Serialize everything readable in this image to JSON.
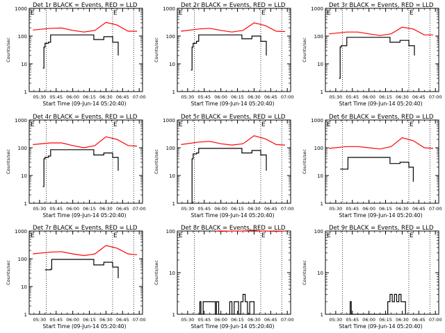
{
  "figure": {
    "ylabel": "Counts/sec",
    "xlabel_prefix": "Start Time",
    "start_time": "09-Jun-14 05:20:40",
    "event_marker": "E",
    "colors": {
      "events": "#000000",
      "lld": "#ff0000",
      "axes": "#000000"
    }
  },
  "chart_data": [
    {
      "type": "line",
      "title": "Det 1r BLACK = Events, RED = LLD",
      "x_ticks": [
        "05:30",
        "05:45",
        "06:00",
        "06:15",
        "06:30",
        "06:45",
        "07:00"
      ],
      "ylim": [
        1,
        1000
      ],
      "yscale": "log",
      "y_ticks": [
        "1",
        "10",
        "100",
        "1000"
      ],
      "event_lines": [
        "05:36",
        "06:36",
        "06:55"
      ],
      "series": [
        {
          "name": "Events",
          "color": "#000000",
          "x": [
            "05:33",
            "05:34",
            "05:35",
            "05:38",
            "05:40",
            "06:18",
            "06:19",
            "06:28",
            "06:36",
            "06:41"
          ],
          "y": [
            7,
            40,
            55,
            60,
            110,
            110,
            75,
            95,
            60,
            20
          ]
        },
        {
          "name": "LLD",
          "color": "#ff0000",
          "x": [
            "05:24",
            "05:40",
            "05:50",
            "06:00",
            "06:10",
            "06:20",
            "06:30",
            "06:40",
            "06:50",
            "06:58"
          ],
          "y": [
            165,
            190,
            195,
            160,
            140,
            160,
            310,
            250,
            150,
            150
          ]
        }
      ]
    },
    {
      "type": "line",
      "title": "Det 2r BLACK = Events, RED = LLD",
      "x_ticks": [
        "05:30",
        "05:45",
        "06:00",
        "06:15",
        "06:30",
        "06:45",
        "07:00"
      ],
      "ylim": [
        1,
        1000
      ],
      "yscale": "log",
      "y_ticks": [
        "1",
        "10",
        "100",
        "1000"
      ],
      "event_lines": [
        "05:36",
        "06:36",
        "06:55"
      ],
      "series": [
        {
          "name": "Events",
          "color": "#000000",
          "x": [
            "05:33",
            "05:34",
            "05:35",
            "05:38",
            "05:40",
            "06:18",
            "06:19",
            "06:28",
            "06:36",
            "06:41"
          ],
          "y": [
            6,
            40,
            55,
            65,
            110,
            110,
            80,
            100,
            65,
            20
          ]
        },
        {
          "name": "LLD",
          "color": "#ff0000",
          "x": [
            "05:24",
            "05:40",
            "05:50",
            "06:00",
            "06:10",
            "06:20",
            "06:30",
            "06:40",
            "06:50",
            "06:58"
          ],
          "y": [
            150,
            180,
            190,
            160,
            140,
            160,
            300,
            240,
            150,
            145
          ]
        }
      ]
    },
    {
      "type": "line",
      "title": "Det 3r BLACK = Events, RED = LLD",
      "x_ticks": [
        "05:30",
        "05:45",
        "06:00",
        "06:15",
        "06:30",
        "06:45",
        "07:00"
      ],
      "ylim": [
        1,
        1000
      ],
      "yscale": "log",
      "y_ticks": [
        "1",
        "10",
        "100",
        "1000"
      ],
      "event_lines": [
        "05:36",
        "06:36",
        "06:55"
      ],
      "series": [
        {
          "name": "Events",
          "color": "#000000",
          "x": [
            "05:33",
            "05:34",
            "05:35",
            "05:38",
            "05:40",
            "06:18",
            "06:19",
            "06:28",
            "06:36",
            "06:41"
          ],
          "y": [
            3,
            40,
            45,
            45,
            90,
            90,
            60,
            70,
            45,
            20
          ]
        },
        {
          "name": "LLD",
          "color": "#ff0000",
          "x": [
            "05:24",
            "05:40",
            "05:50",
            "06:00",
            "06:10",
            "06:20",
            "06:30",
            "06:40",
            "06:50",
            "06:58"
          ],
          "y": [
            120,
            140,
            140,
            120,
            105,
            120,
            210,
            180,
            110,
            110
          ]
        }
      ]
    },
    {
      "type": "line",
      "title": "Det 4r BLACK = Events, RED = LLD",
      "x_ticks": [
        "05:30",
        "05:45",
        "06:00",
        "06:15",
        "06:30",
        "06:45",
        "07:00"
      ],
      "ylim": [
        1,
        1000
      ],
      "yscale": "log",
      "y_ticks": [
        "1",
        "10",
        "100",
        "1000"
      ],
      "event_lines": [
        "05:36",
        "06:36",
        "06:55"
      ],
      "series": [
        {
          "name": "Events",
          "color": "#000000",
          "x": [
            "05:33",
            "05:34",
            "05:35",
            "05:38",
            "05:40",
            "06:18",
            "06:19",
            "06:28",
            "06:36",
            "06:41"
          ],
          "y": [
            4,
            40,
            45,
            50,
            85,
            85,
            55,
            65,
            45,
            15
          ]
        },
        {
          "name": "LLD",
          "color": "#ff0000",
          "x": [
            "05:24",
            "05:40",
            "05:50",
            "06:00",
            "06:10",
            "06:20",
            "06:30",
            "06:40",
            "06:50",
            "06:58"
          ],
          "y": [
            130,
            150,
            150,
            120,
            100,
            120,
            250,
            200,
            120,
            115
          ]
        }
      ]
    },
    {
      "type": "line",
      "title": "Det 5r BLACK = Events, RED = LLD",
      "x_ticks": [
        "05:30",
        "05:45",
        "06:00",
        "06:15",
        "06:30",
        "06:45",
        "07:00"
      ],
      "ylim": [
        1,
        1000
      ],
      "yscale": "log",
      "y_ticks": [
        "1",
        "10",
        "100",
        "1000"
      ],
      "event_lines": [
        "05:36",
        "06:36",
        "06:55"
      ],
      "series": [
        {
          "name": "Events",
          "color": "#000000",
          "x": [
            "05:33",
            "05:34",
            "05:35",
            "05:38",
            "05:40",
            "06:18",
            "06:19",
            "06:28",
            "06:36",
            "06:41"
          ],
          "y": [
            1,
            40,
            60,
            65,
            95,
            95,
            65,
            80,
            55,
            15
          ]
        },
        {
          "name": "LLD",
          "color": "#ff0000",
          "x": [
            "05:24",
            "05:40",
            "05:50",
            "06:00",
            "06:10",
            "06:20",
            "06:30",
            "06:40",
            "06:50",
            "06:58"
          ],
          "y": [
            130,
            160,
            170,
            140,
            125,
            140,
            270,
            210,
            130,
            125
          ]
        }
      ]
    },
    {
      "type": "line",
      "title": "Det 6r BLACK = Events, RED = LLD",
      "x_ticks": [
        "05:30",
        "05:45",
        "06:00",
        "06:15",
        "06:30",
        "06:45",
        "07:00"
      ],
      "ylim": [
        1,
        1000
      ],
      "yscale": "log",
      "y_ticks": [
        "1",
        "10",
        "100",
        "1000"
      ],
      "event_lines": [
        "05:36",
        "06:36",
        "06:55"
      ],
      "series": [
        {
          "name": "Events",
          "color": "#000000",
          "x": [
            "05:34",
            "05:40",
            "05:41",
            "06:18",
            "06:19",
            "06:28",
            "06:36",
            "06:40"
          ],
          "y": [
            17,
            17,
            45,
            45,
            27,
            30,
            20,
            6
          ]
        },
        {
          "name": "LLD",
          "color": "#ff0000",
          "x": [
            "05:24",
            "05:40",
            "05:50",
            "06:00",
            "06:10",
            "06:20",
            "06:30",
            "06:40",
            "06:50",
            "06:58"
          ],
          "y": [
            95,
            110,
            110,
            100,
            90,
            110,
            230,
            180,
            100,
            95
          ]
        }
      ]
    },
    {
      "type": "line",
      "title": "Det 7r BLACK = Events, RED = LLD",
      "x_ticks": [
        "05:30",
        "05:45",
        "06:00",
        "06:15",
        "06:30",
        "06:45",
        "07:00"
      ],
      "ylim": [
        1,
        1000
      ],
      "yscale": "log",
      "y_ticks": [
        "1",
        "10",
        "100",
        "1000"
      ],
      "event_lines": [
        "05:36",
        "06:36",
        "06:55"
      ],
      "series": [
        {
          "name": "Events",
          "color": "#000000",
          "x": [
            "05:35",
            "05:40",
            "05:41",
            "06:18",
            "06:19",
            "06:28",
            "06:36",
            "06:41"
          ],
          "y": [
            40,
            42,
            95,
            95,
            60,
            75,
            50,
            20
          ]
        },
        {
          "name": "LLD",
          "color": "#ff0000",
          "x": [
            "05:24",
            "05:40",
            "05:50",
            "06:00",
            "06:10",
            "06:20",
            "06:30",
            "06:40",
            "06:50",
            "06:58"
          ],
          "y": [
            150,
            175,
            180,
            150,
            130,
            150,
            300,
            240,
            150,
            140
          ]
        }
      ]
    },
    {
      "type": "line",
      "title": "Det 8r BLACK = Events, RED = LLD",
      "x_ticks": [
        "05:30",
        "05:45",
        "06:00",
        "06:15",
        "06:30",
        "06:45",
        "07:00"
      ],
      "ylim": [
        1,
        100
      ],
      "yscale": "log",
      "y_ticks": [
        "1",
        "10",
        "100"
      ],
      "event_lines": [
        "05:36",
        "06:36",
        "06:55"
      ],
      "series": [
        {
          "name": "Events",
          "color": "#000000",
          "x": [
            "05:40",
            "05:41",
            "05:42",
            "05:44",
            "05:55",
            "05:56",
            "05:58",
            "06:08",
            "06:10",
            "06:12",
            "06:14",
            "06:16",
            "06:18",
            "06:20",
            "06:22",
            "06:24",
            "06:26",
            "06:28",
            "06:30"
          ],
          "y": [
            1,
            2,
            1,
            2,
            1,
            2,
            1,
            2,
            1,
            2,
            2,
            1,
            2,
            3,
            2,
            1,
            2,
            2,
            1
          ]
        },
        {
          "name": "LLD",
          "color": "#ff0000",
          "x": [
            "05:55",
            "06:00",
            "06:10",
            "06:20",
            "06:30",
            "06:36",
            "06:40",
            "06:50",
            "06:58"
          ],
          "y": [
            100,
            98,
            100,
            100,
            105,
            100,
            100,
            98,
            100
          ]
        }
      ]
    },
    {
      "type": "line",
      "title": "Det 9r BLACK = Events, RED = LLD",
      "x_ticks": [
        "05:30",
        "05:45",
        "06:00",
        "06:15",
        "06:30",
        "06:45",
        "07:00"
      ],
      "ylim": [
        1,
        100
      ],
      "yscale": "log",
      "y_ticks": [
        "1",
        "10",
        "100"
      ],
      "event_lines": [
        "05:36",
        "06:36",
        "06:55"
      ],
      "series": [
        {
          "name": "Events",
          "color": "#000000",
          "x": [
            "05:42",
            "05:43",
            "05:44",
            "06:15",
            "06:17",
            "06:19",
            "06:21",
            "06:23",
            "06:25",
            "06:27",
            "06:29",
            "06:31",
            "06:33"
          ],
          "y": [
            1,
            2,
            1,
            1,
            2,
            3,
            2,
            3,
            2,
            3,
            2,
            2,
            1
          ]
        },
        {
          "name": "LLD",
          "color": "#ff0000",
          "x": [],
          "y": []
        }
      ]
    }
  ]
}
